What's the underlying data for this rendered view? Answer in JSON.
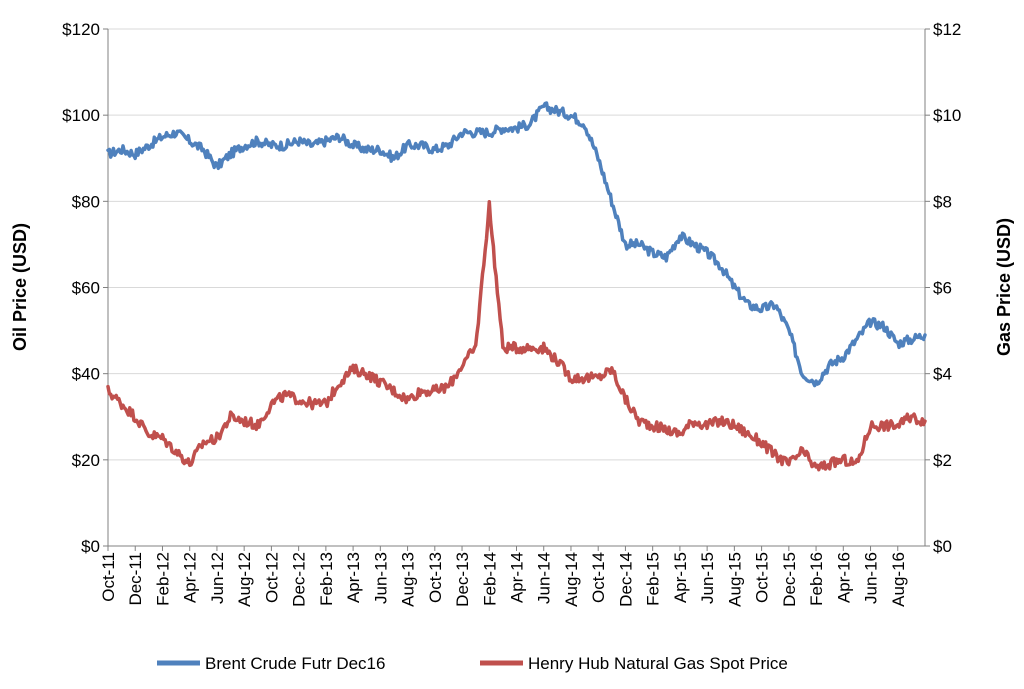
{
  "chart_data": {
    "type": "line",
    "ylabel_left": "Oil Price (USD)",
    "ylabel_right": "Gas Price (USD)",
    "ylim_left": [
      0,
      120
    ],
    "ylim_right": [
      0,
      12
    ],
    "yticks_left": [
      "$0",
      "$20",
      "$40",
      "$60",
      "$80",
      "$100",
      "$120"
    ],
    "yticks_right": [
      "$0",
      "$2",
      "$4",
      "$6",
      "$8",
      "$10",
      "$12"
    ],
    "xticks": [
      "Oct-11",
      "Dec-11",
      "Feb-12",
      "Apr-12",
      "Jun-12",
      "Aug-12",
      "Oct-12",
      "Dec-12",
      "Feb-13",
      "Apr-13",
      "Jun-13",
      "Aug-13",
      "Oct-13",
      "Dec-13",
      "Feb-14",
      "Apr-14",
      "Jun-14",
      "Aug-14",
      "Oct-14",
      "Dec-14",
      "Feb-15",
      "Apr-15",
      "Jun-15",
      "Aug-15",
      "Oct-15",
      "Dec-15",
      "Feb-16",
      "Apr-16",
      "Jun-16",
      "Aug-16"
    ],
    "x_range": [
      "2011-10",
      "2016-10"
    ],
    "grid": true,
    "legend_position": "bottom",
    "series": [
      {
        "name": "Brent Crude Futr Dec16",
        "axis": "left",
        "color": "#4F81BD",
        "x": [
          "2011-10",
          "2011-11",
          "2011-12",
          "2012-01",
          "2012-02",
          "2012-03",
          "2012-04",
          "2012-05",
          "2012-06",
          "2012-07",
          "2012-08",
          "2012-09",
          "2012-10",
          "2012-11",
          "2012-12",
          "2013-01",
          "2013-02",
          "2013-03",
          "2013-04",
          "2013-05",
          "2013-06",
          "2013-07",
          "2013-08",
          "2013-09",
          "2013-10",
          "2013-11",
          "2013-12",
          "2014-01",
          "2014-02",
          "2014-03",
          "2014-04",
          "2014-05",
          "2014-06",
          "2014-07",
          "2014-08",
          "2014-09",
          "2014-10",
          "2014-11",
          "2014-12",
          "2015-01",
          "2015-02",
          "2015-03",
          "2015-04",
          "2015-05",
          "2015-06",
          "2015-07",
          "2015-08",
          "2015-09",
          "2015-10",
          "2015-11",
          "2015-12",
          "2016-01",
          "2016-02",
          "2016-03",
          "2016-04",
          "2016-05",
          "2016-06",
          "2016-07",
          "2016-08",
          "2016-09",
          "2016-10"
        ],
        "values": [
          91,
          92,
          91,
          93,
          95,
          96,
          94,
          92,
          88,
          91,
          93,
          94,
          93,
          93,
          94,
          93,
          94,
          95,
          93,
          92,
          92,
          90,
          93,
          93,
          92,
          93,
          96,
          96,
          96,
          97,
          97,
          98,
          102,
          101,
          100,
          98,
          90,
          80,
          70,
          70,
          68,
          67,
          72,
          70,
          68,
          65,
          60,
          56,
          55,
          56,
          50,
          40,
          38,
          42,
          44,
          48,
          52,
          51,
          47,
          48,
          49
        ]
      },
      {
        "name": "Henry Hub Natural Gas Spot Price",
        "axis": "right",
        "color": "#C0504D",
        "x": [
          "2011-10",
          "2011-11",
          "2011-12",
          "2012-01",
          "2012-02",
          "2012-03",
          "2012-04",
          "2012-05",
          "2012-06",
          "2012-07",
          "2012-08",
          "2012-09",
          "2012-10",
          "2012-11",
          "2012-12",
          "2013-01",
          "2013-02",
          "2013-03",
          "2013-04",
          "2013-05",
          "2013-06",
          "2013-07",
          "2013-08",
          "2013-09",
          "2013-10",
          "2013-11",
          "2013-12",
          "2014-01",
          "2014-02",
          "2014-03",
          "2014-04",
          "2014-05",
          "2014-06",
          "2014-07",
          "2014-08",
          "2014-09",
          "2014-10",
          "2014-11",
          "2014-12",
          "2015-01",
          "2015-02",
          "2015-03",
          "2015-04",
          "2015-05",
          "2015-06",
          "2015-07",
          "2015-08",
          "2015-09",
          "2015-10",
          "2015-11",
          "2015-12",
          "2016-01",
          "2016-02",
          "2016-03",
          "2016-04",
          "2016-05",
          "2016-06",
          "2016-07",
          "2016-08",
          "2016-09",
          "2016-10"
        ],
        "values": [
          3.6,
          3.3,
          3.0,
          2.6,
          2.5,
          2.2,
          1.9,
          2.4,
          2.5,
          3.0,
          2.9,
          2.8,
          3.3,
          3.5,
          3.4,
          3.3,
          3.3,
          3.8,
          4.1,
          4.0,
          3.8,
          3.6,
          3.4,
          3.6,
          3.6,
          3.7,
          4.2,
          4.6,
          7.9,
          4.6,
          4.6,
          4.6,
          4.6,
          4.3,
          3.9,
          3.9,
          3.9,
          4.1,
          3.4,
          2.9,
          2.8,
          2.7,
          2.6,
          2.9,
          2.8,
          2.9,
          2.8,
          2.6,
          2.4,
          2.1,
          1.9,
          2.2,
          1.8,
          1.9,
          2.0,
          1.9,
          2.8,
          2.8,
          2.8,
          3.0,
          2.9
        ]
      }
    ]
  }
}
